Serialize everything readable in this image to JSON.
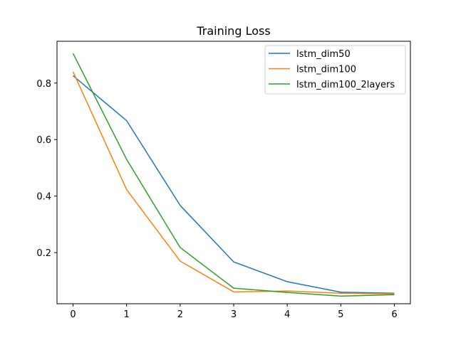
{
  "chart_data": {
    "type": "line",
    "title": "Training Loss",
    "xlabel": "",
    "ylabel": "",
    "x": [
      0,
      1,
      2,
      3,
      4,
      5,
      6
    ],
    "xlim": [
      -0.3,
      6.3
    ],
    "ylim": [
      0.019,
      0.948
    ],
    "xticks": [
      0,
      1,
      2,
      3,
      4,
      5,
      6
    ],
    "yticks": [
      0.2,
      0.4,
      0.6,
      0.8
    ],
    "xtick_labels": [
      "0",
      "1",
      "2",
      "3",
      "4",
      "5",
      "6"
    ],
    "ytick_labels": [
      "0.2",
      "0.4",
      "0.6",
      "0.8"
    ],
    "grid": false,
    "legend_position": "top-right",
    "series": [
      {
        "name": "lstm_dim50",
        "color": "#1f77b4",
        "values": [
          0.826,
          0.667,
          0.367,
          0.167,
          0.097,
          0.06,
          0.056
        ]
      },
      {
        "name": "lstm_dim100",
        "color": "#ff7f0e",
        "values": [
          0.84,
          0.423,
          0.17,
          0.061,
          0.064,
          0.056,
          0.054
        ]
      },
      {
        "name": "lstm_dim100_2layers",
        "color": "#2ca02c",
        "values": [
          0.905,
          0.53,
          0.218,
          0.074,
          0.059,
          0.046,
          0.051
        ]
      }
    ]
  }
}
